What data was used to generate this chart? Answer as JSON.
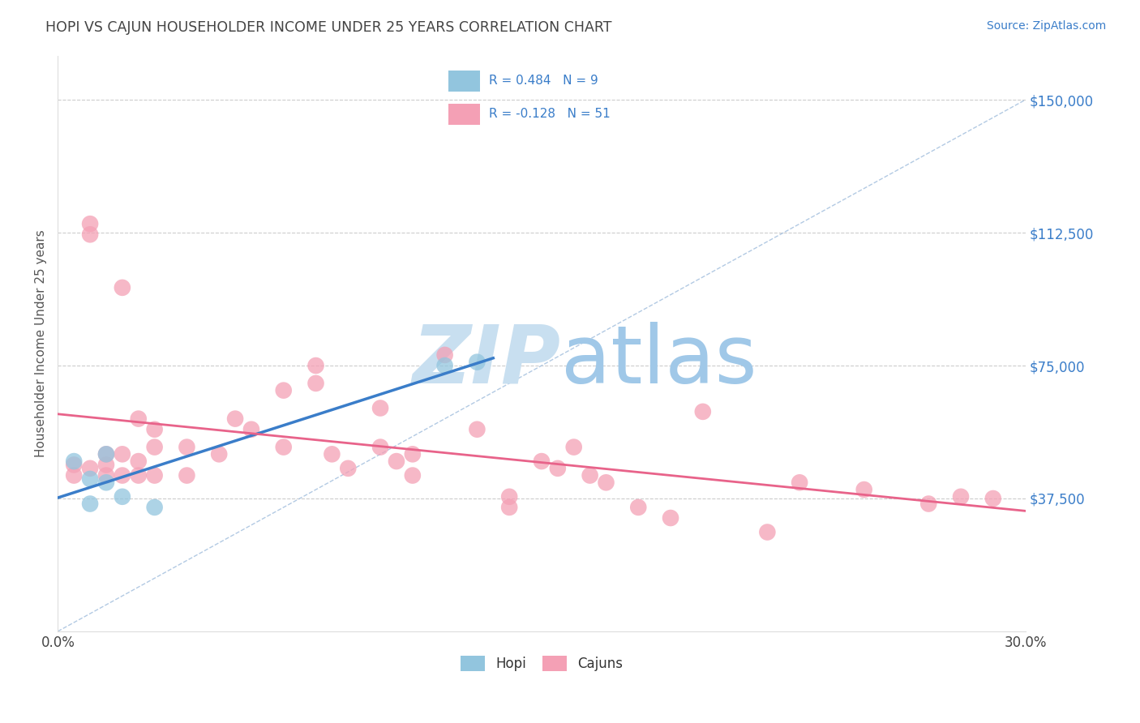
{
  "title": "HOPI VS CAJUN HOUSEHOLDER INCOME UNDER 25 YEARS CORRELATION CHART",
  "source": "Source: ZipAtlas.com",
  "ylabel": "Householder Income Under 25 years",
  "xlim": [
    0.0,
    0.3
  ],
  "ylim": [
    0,
    162500
  ],
  "xticks": [
    0.0,
    0.05,
    0.1,
    0.15,
    0.2,
    0.25,
    0.3
  ],
  "ytick_positions": [
    37500,
    75000,
    112500,
    150000
  ],
  "ytick_labels": [
    "$37,500",
    "$75,000",
    "$112,500",
    "$150,000"
  ],
  "hopi_color": "#92c5de",
  "cajun_color": "#f4a0b5",
  "hopi_line_color": "#3a7dc9",
  "cajun_line_color": "#e8638a",
  "ref_line_color": "#aac4e0",
  "background_color": "#ffffff",
  "grid_color": "#cccccc",
  "title_color": "#444444",
  "yaxis_label_color": "#3a7dc9",
  "source_color": "#3a7dc9",
  "legend_text_color": "#3a7dc9",
  "hopi_R": 0.484,
  "hopi_N": 9,
  "cajun_R": -0.128,
  "cajun_N": 51,
  "hopi_x": [
    0.005,
    0.01,
    0.01,
    0.015,
    0.015,
    0.02,
    0.03,
    0.12,
    0.13
  ],
  "hopi_y": [
    48000,
    43000,
    36000,
    50000,
    42000,
    38000,
    35000,
    75000,
    76000
  ],
  "cajun_x": [
    0.005,
    0.005,
    0.01,
    0.01,
    0.01,
    0.015,
    0.015,
    0.015,
    0.02,
    0.02,
    0.02,
    0.025,
    0.025,
    0.025,
    0.03,
    0.03,
    0.03,
    0.04,
    0.04,
    0.05,
    0.055,
    0.06,
    0.07,
    0.07,
    0.08,
    0.08,
    0.085,
    0.09,
    0.1,
    0.1,
    0.105,
    0.11,
    0.11,
    0.12,
    0.13,
    0.14,
    0.14,
    0.15,
    0.155,
    0.16,
    0.165,
    0.17,
    0.18,
    0.19,
    0.2,
    0.22,
    0.23,
    0.25,
    0.27,
    0.28,
    0.29
  ],
  "cajun_y": [
    47000,
    44000,
    115000,
    112000,
    46000,
    50000,
    47000,
    44000,
    97000,
    50000,
    44000,
    60000,
    48000,
    44000,
    57000,
    52000,
    44000,
    52000,
    44000,
    50000,
    60000,
    57000,
    68000,
    52000,
    75000,
    70000,
    50000,
    46000,
    63000,
    52000,
    48000,
    50000,
    44000,
    78000,
    57000,
    38000,
    35000,
    48000,
    46000,
    52000,
    44000,
    42000,
    35000,
    32000,
    62000,
    28000,
    42000,
    40000,
    36000,
    38000,
    37500
  ],
  "watermark_zip": "ZIP",
  "watermark_atlas": "atlas",
  "watermark_color_zip": "#c8dff0",
  "watermark_color_atlas": "#a0c8e8",
  "figsize": [
    14.06,
    8.92
  ],
  "dpi": 100
}
